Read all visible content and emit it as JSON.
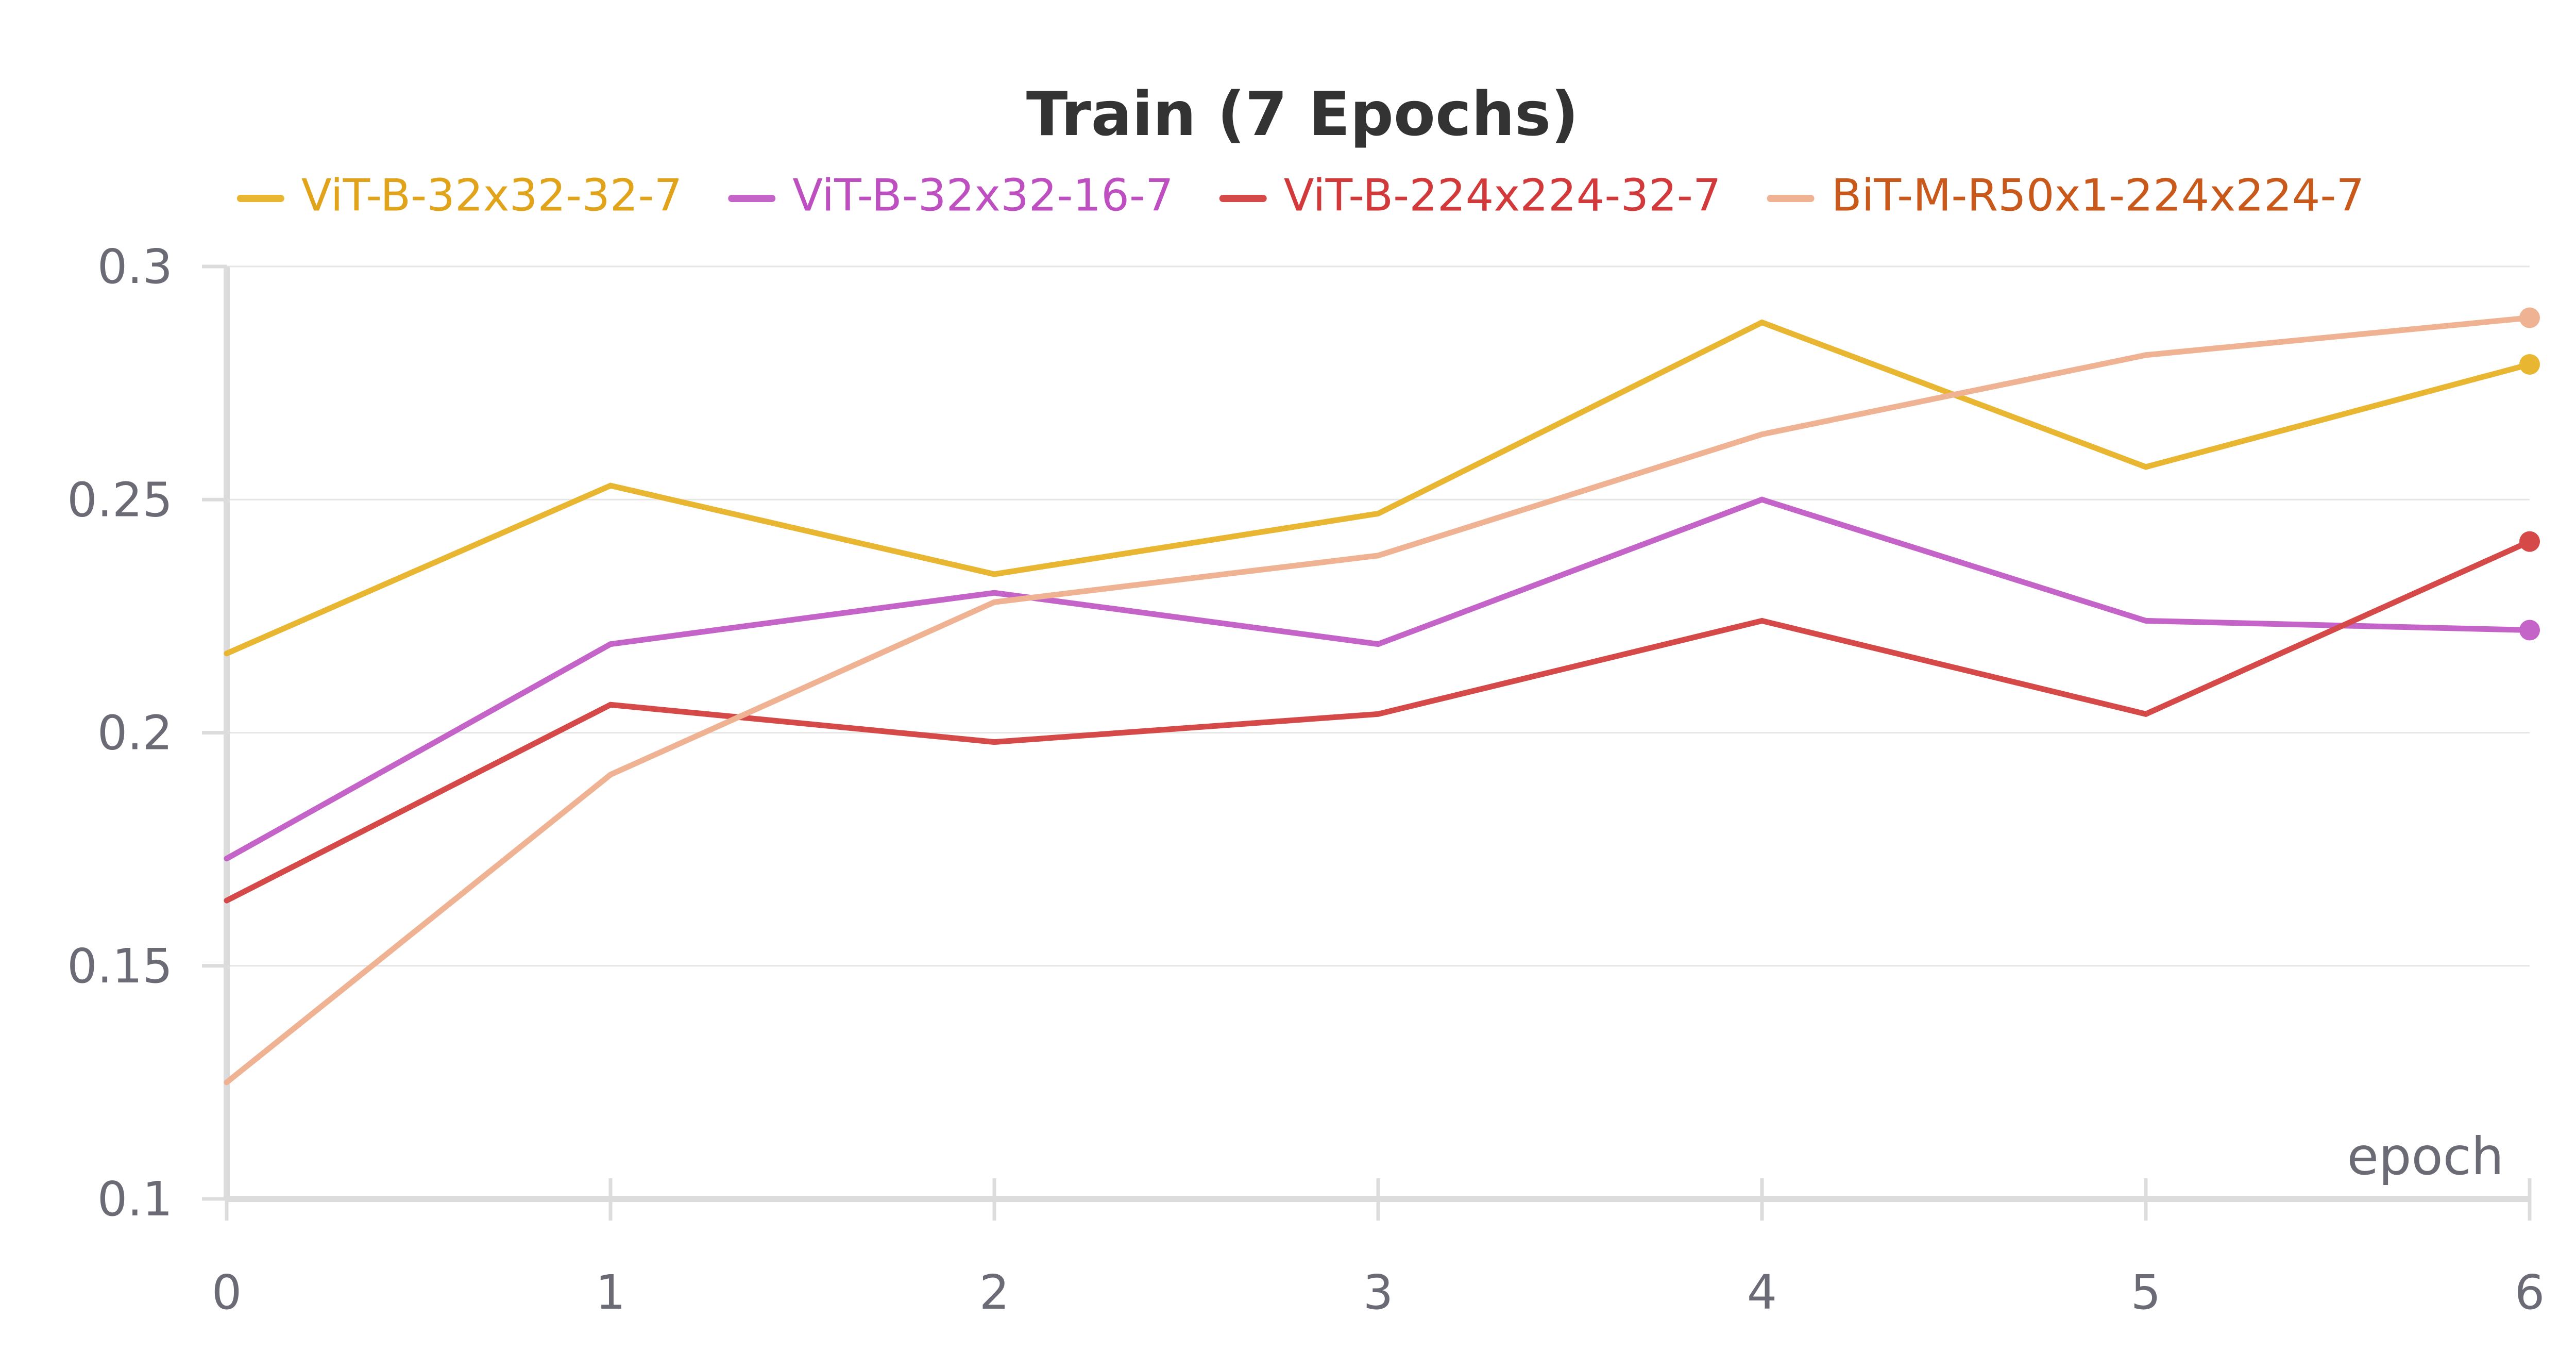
{
  "chart_data": {
    "type": "line",
    "title": "Train (7 Epochs)",
    "xlabel": "epoch",
    "ylabel": "",
    "x": [
      0,
      1,
      2,
      3,
      4,
      5,
      6
    ],
    "xlim": [
      0,
      6
    ],
    "ylim": [
      0.1,
      0.3
    ],
    "yticks": [
      0.1,
      0.15,
      0.2,
      0.25,
      0.3
    ],
    "ytick_labels": [
      "0.1",
      "0.15",
      "0.2",
      "0.25",
      "0.3"
    ],
    "xtick_labels": [
      "0",
      "1",
      "2",
      "3",
      "4",
      "5",
      "6"
    ],
    "grid": true,
    "legend_position": "top-center",
    "series": [
      {
        "name": "ViT-B-32x32-32-7",
        "color": "#e8b631",
        "label_color": "#e0a31a",
        "values": [
          0.217,
          0.253,
          0.234,
          0.247,
          0.288,
          0.257,
          0.279
        ]
      },
      {
        "name": "ViT-B-32x32-16-7",
        "color": "#c564c8",
        "label_color": "#bd4fc0",
        "values": [
          0.173,
          0.219,
          0.23,
          0.219,
          0.25,
          0.224,
          0.222
        ]
      },
      {
        "name": "ViT-B-224x224-32-7",
        "color": "#d54a48",
        "label_color": "#d2393a",
        "values": [
          0.164,
          0.206,
          0.198,
          0.204,
          0.224,
          0.204,
          0.241
        ]
      },
      {
        "name": "BiT-M-R50x1-224x224-7",
        "color": "#efb394",
        "label_color": "#c9581b",
        "values": [
          0.125,
          0.191,
          0.228,
          0.238,
          0.264,
          0.281,
          0.289
        ]
      }
    ]
  }
}
